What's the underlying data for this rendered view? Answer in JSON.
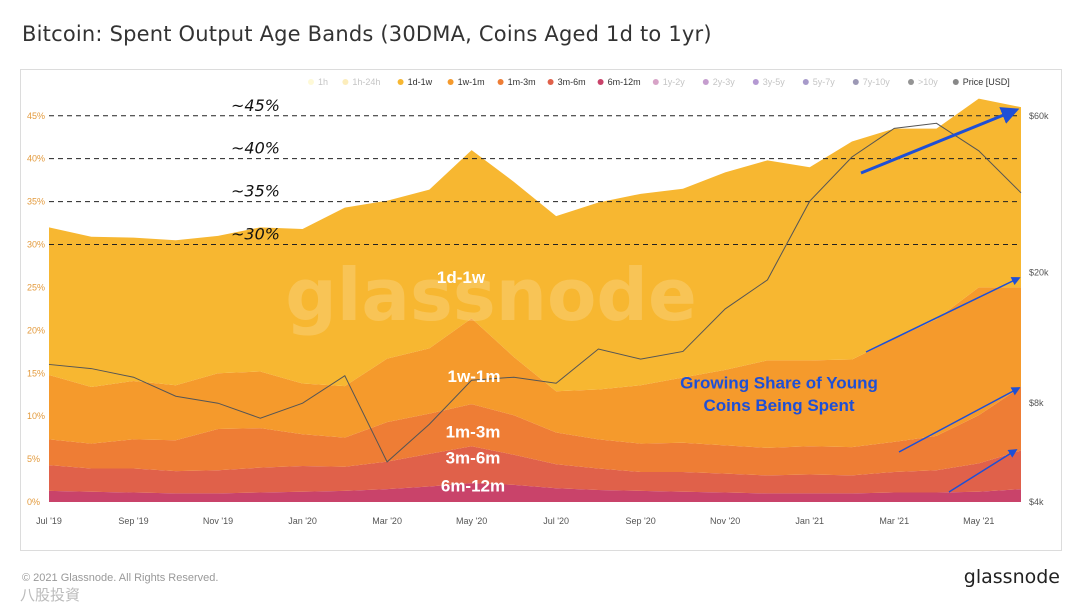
{
  "title": "Bitcoin: Spent Output Age Bands (30DMA, Coins Aged 1d to 1yr)",
  "footer": {
    "copyright": "© 2021 Glassnode. All Rights Reserved.",
    "brand": "glassnode",
    "watermark": "八股投資"
  },
  "chart_data": {
    "type": "area",
    "stacked": true,
    "watermark": "glassnode",
    "x": [
      "2019-07",
      "2019-08",
      "2019-09",
      "2019-10",
      "2019-11",
      "2019-12",
      "2020-01",
      "2020-02",
      "2020-03",
      "2020-04",
      "2020-05",
      "2020-06",
      "2020-07",
      "2020-08",
      "2020-09",
      "2020-10",
      "2020-11",
      "2020-12",
      "2021-01",
      "2021-02",
      "2021-03",
      "2021-04",
      "2021-05",
      "2021-06"
    ],
    "x_tick_labels": [
      "Jul '19",
      "Sep '19",
      "Nov '19",
      "Jan '20",
      "Mar '20",
      "May '20",
      "Jul '20",
      "Sep '20",
      "Nov '20",
      "Jan '21",
      "Mar '21",
      "May '21"
    ],
    "ylim": [
      0,
      48
    ],
    "y_tick_labels": [
      "0%",
      "5%",
      "10%",
      "15%",
      "20%",
      "25%",
      "30%",
      "35%",
      "40%",
      "45%"
    ],
    "y2_scale": "log",
    "y2lim": [
      4000,
      72000
    ],
    "y2_tick_labels": [
      "$4k",
      "$8k",
      "$20k",
      "$60k"
    ],
    "legend_position": "top-right",
    "legend": [
      {
        "label": "1h",
        "color": "#fdf1a6",
        "active": false
      },
      {
        "label": "1h-24h",
        "color": "#f8d76a",
        "active": false
      },
      {
        "label": "1d-1w",
        "color": "#f7b731",
        "active": true
      },
      {
        "label": "1w-1m",
        "color": "#f59a2c",
        "active": true
      },
      {
        "label": "1m-3m",
        "color": "#ee7d35",
        "active": true
      },
      {
        "label": "3m-6m",
        "color": "#e0614a",
        "active": true
      },
      {
        "label": "6m-12m",
        "color": "#c9436a",
        "active": true
      },
      {
        "label": "1y-2y",
        "color": "#a63282",
        "active": false
      },
      {
        "label": "2y-3y",
        "color": "#7e2593",
        "active": false
      },
      {
        "label": "3y-5y",
        "color": "#581d9b",
        "active": false
      },
      {
        "label": "5y-7y",
        "color": "#3b1f8a",
        "active": false
      },
      {
        "label": "7y-10y",
        "color": "#231b5c",
        "active": false
      },
      {
        "label": ">10y",
        "color": "#111111",
        "active": false
      },
      {
        "label": "Price [USD]",
        "color": "#888888",
        "active": true
      }
    ],
    "series": [
      {
        "name": "6m-12m",
        "color": "#c9436a",
        "values": [
          1.3,
          1.2,
          1.1,
          1.0,
          1.0,
          1.1,
          1.2,
          1.3,
          1.5,
          1.8,
          2.2,
          2.0,
          1.6,
          1.4,
          1.3,
          1.2,
          1.1,
          1.0,
          1.0,
          1.0,
          1.1,
          1.1,
          1.2,
          1.5
        ]
      },
      {
        "name": "3m-6m",
        "color": "#e0614a",
        "values": [
          3.0,
          2.7,
          2.8,
          2.6,
          2.7,
          2.9,
          3.0,
          2.8,
          3.2,
          3.8,
          4.3,
          3.5,
          2.8,
          2.5,
          2.2,
          2.3,
          2.2,
          2.1,
          2.2,
          2.1,
          2.4,
          2.6,
          3.3,
          4.5
        ]
      },
      {
        "name": "1m-3m",
        "color": "#ee7d35",
        "values": [
          3.0,
          2.9,
          3.4,
          3.6,
          4.8,
          4.6,
          3.7,
          3.4,
          4.6,
          4.7,
          4.9,
          4.6,
          3.7,
          3.4,
          3.3,
          3.4,
          3.3,
          3.2,
          3.3,
          3.3,
          3.5,
          4.0,
          5.6,
          7.4
        ]
      },
      {
        "name": "1w-1m",
        "color": "#f59a2c",
        "values": [
          7.5,
          6.6,
          6.8,
          6.4,
          6.5,
          6.6,
          5.9,
          6.0,
          7.4,
          7.6,
          10.0,
          6.8,
          4.8,
          5.8,
          6.8,
          7.6,
          8.8,
          10.2,
          10.0,
          10.2,
          12.0,
          13.6,
          14.9,
          11.6
        ]
      },
      {
        "name": "1d-1w",
        "color": "#f7b731",
        "values": [
          17.2,
          17.5,
          16.7,
          16.9,
          16.0,
          16.8,
          18.0,
          20.8,
          18.4,
          18.5,
          19.6,
          20.4,
          20.4,
          21.8,
          22.3,
          22.0,
          23.0,
          23.3,
          22.5,
          25.4,
          24.5,
          22.2,
          22.0,
          21.0
        ]
      }
    ],
    "price": {
      "name": "Price [USD]",
      "color": "#555555",
      "values": [
        10500,
        10200,
        9600,
        8400,
        8000,
        7200,
        8000,
        9700,
        5300,
        6900,
        9400,
        9600,
        9200,
        11700,
        10900,
        11500,
        15500,
        19000,
        33000,
        45000,
        55000,
        57000,
        47000,
        35000
      ]
    },
    "annotations": {
      "reference_lines": [
        {
          "value": 45,
          "label": "~45%"
        },
        {
          "value": 40,
          "label": "~40%"
        },
        {
          "value": 35,
          "label": "~35%"
        },
        {
          "value": 30,
          "label": "~30%"
        }
      ],
      "band_labels": [
        "1d-1w",
        "1w-1m",
        "1m-3m",
        "3m-6m",
        "6m-12m"
      ],
      "callout": [
        "Growing Share of Young",
        "Coins Being Spent"
      ]
    }
  }
}
